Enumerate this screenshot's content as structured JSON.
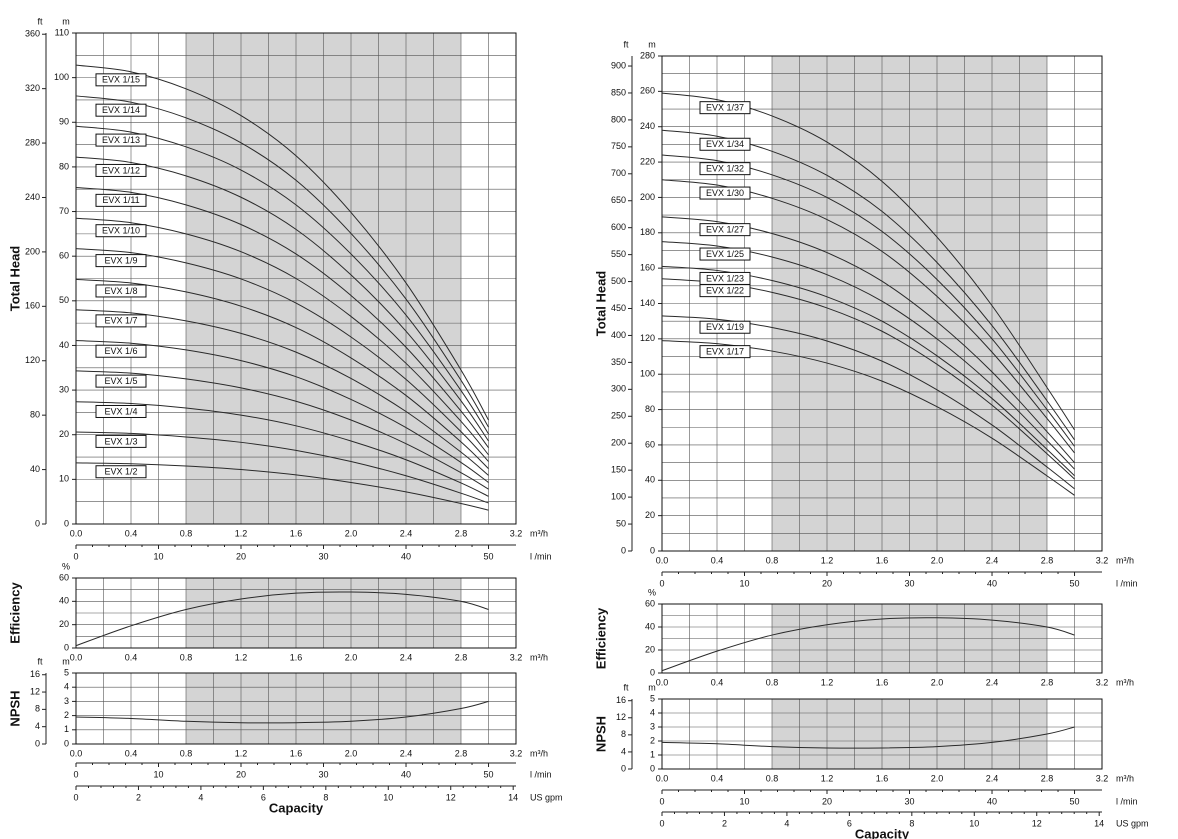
{
  "chart_data": [
    {
      "type": "line",
      "y_label": "Total Head",
      "y_unit": "m",
      "y2_unit": "ft",
      "x_unit": "m³/h",
      "x2_unit": "l /min",
      "x": [
        0,
        0.4,
        0.8,
        1.2,
        1.6,
        2.0,
        2.4,
        2.8,
        3.0
      ],
      "xlim": [
        0,
        3.2
      ],
      "xticks": [
        {
          "value": 0,
          "label": "0.0"
        },
        0.4,
        0.8,
        1.2,
        1.6,
        {
          "value": 2,
          "label": "2.0"
        },
        2.4,
        2.8,
        3.2
      ],
      "ylim": [
        0,
        110
      ],
      "yticks": [
        0,
        10,
        20,
        30,
        40,
        50,
        60,
        70,
        80,
        90,
        100,
        110
      ],
      "y2lim": [
        0,
        360.9
      ],
      "y2ticks": [
        0,
        40,
        80,
        120,
        160,
        200,
        240,
        280,
        320,
        360
      ],
      "x2lim": [
        0,
        53.33
      ],
      "x2ticks": [
        0,
        10,
        20,
        30,
        40,
        50
      ],
      "shade": [
        0.8,
        2.8
      ],
      "grid": true,
      "series": [
        {
          "name": "EVX 1/2",
          "color": "#2a2a2a",
          "values": [
            13.7,
            13.5,
            13,
            12.2,
            11,
            9.3,
            7.2,
            4.6,
            3.1
          ]
        },
        {
          "name": "EVX 1/3",
          "color": "#2a2a2a",
          "values": [
            20.6,
            20.3,
            19.5,
            18.3,
            16.5,
            14.0,
            10.8,
            6.9,
            4.7
          ]
        },
        {
          "name": "EVX 1/4",
          "color": "#2a2a2a",
          "values": [
            27.4,
            27.0,
            26.0,
            24.4,
            22.0,
            18.6,
            14.4,
            9.2,
            6.2
          ]
        },
        {
          "name": "EVX 1/5",
          "color": "#2a2a2a",
          "values": [
            34.3,
            33.8,
            32.5,
            30.5,
            27.5,
            23.3,
            18.0,
            11.5,
            7.8
          ]
        },
        {
          "name": "EVX 1/6",
          "color": "#2a2a2a",
          "values": [
            41.1,
            40.5,
            39.0,
            36.6,
            33.0,
            27.9,
            21.6,
            13.8,
            9.3
          ]
        },
        {
          "name": "EVX 1/7",
          "color": "#2a2a2a",
          "values": [
            48.0,
            47.3,
            45.5,
            42.7,
            38.5,
            32.6,
            25.2,
            16.1,
            10.9
          ]
        },
        {
          "name": "EVX 1/8",
          "color": "#2a2a2a",
          "values": [
            54.8,
            54.0,
            52.0,
            48.8,
            44.0,
            37.2,
            28.8,
            18.4,
            12.4
          ]
        },
        {
          "name": "EVX 1/9",
          "color": "#2a2a2a",
          "values": [
            61.7,
            60.8,
            58.5,
            54.9,
            49.5,
            41.9,
            32.4,
            20.7,
            14.0
          ]
        },
        {
          "name": "EVX 1/10",
          "color": "#2a2a2a",
          "values": [
            68.5,
            67.5,
            65.0,
            61.0,
            55.0,
            46.5,
            36.0,
            23.0,
            15.5
          ]
        },
        {
          "name": "EVX 1/11",
          "color": "#2a2a2a",
          "values": [
            75.4,
            74.3,
            71.5,
            67.1,
            60.5,
            51.2,
            39.6,
            25.3,
            17.1
          ]
        },
        {
          "name": "EVX 1/12",
          "color": "#2a2a2a",
          "values": [
            82.2,
            81.0,
            78.0,
            73.2,
            66.0,
            55.8,
            43.2,
            27.6,
            18.6
          ]
        },
        {
          "name": "EVX 1/13",
          "color": "#2a2a2a",
          "values": [
            89.1,
            87.8,
            84.5,
            79.3,
            71.5,
            60.5,
            46.8,
            29.9,
            20.2
          ]
        },
        {
          "name": "EVX 1/14",
          "color": "#2a2a2a",
          "values": [
            95.9,
            94.5,
            91.0,
            85.4,
            77.0,
            65.1,
            50.4,
            32.2,
            21.7
          ]
        },
        {
          "name": "EVX 1/15",
          "color": "#2a2a2a",
          "values": [
            102.8,
            101.3,
            97.5,
            91.5,
            82.5,
            69.8,
            54.0,
            34.5,
            23.3
          ]
        }
      ]
    },
    {
      "type": "line",
      "y_label": "Efficiency",
      "y_unit": "%",
      "x_unit": "m³/h",
      "x": [
        0,
        0.4,
        0.8,
        1.2,
        1.6,
        2.0,
        2.4,
        2.8,
        3.0
      ],
      "xlim": [
        0,
        3.2
      ],
      "xticks": [
        {
          "value": 0,
          "label": "0.0"
        },
        0.4,
        0.8,
        1.2,
        1.6,
        {
          "value": 2,
          "label": "2.0"
        },
        2.4,
        2.8,
        3.2
      ],
      "ylim": [
        0,
        60
      ],
      "yticks": [
        0,
        20,
        40,
        60
      ],
      "shade": [
        0.8,
        2.8
      ],
      "grid": true,
      "series": [
        {
          "color": "#2a2a2a",
          "values": [
            2,
            19,
            33,
            42,
            47,
            48,
            46,
            40,
            33
          ]
        }
      ]
    },
    {
      "type": "line",
      "y_label": "NPSH",
      "y_unit": "m",
      "y2_unit": "ft",
      "x_unit": "m³/h",
      "x2_unit": "l /min",
      "x3_unit": "US gpm",
      "x_label": "Capacity",
      "x": [
        0,
        0.4,
        0.8,
        1.2,
        1.6,
        2.0,
        2.4,
        2.8,
        3.0
      ],
      "xlim": [
        0,
        3.2
      ],
      "xticks": [
        {
          "value": 0,
          "label": "0.0"
        },
        0.4,
        0.8,
        1.2,
        1.6,
        {
          "value": 2,
          "label": "2.0"
        },
        2.4,
        2.8,
        3.2
      ],
      "ylim": [
        0,
        5
      ],
      "yticks": [
        0,
        1,
        2,
        3,
        4,
        5
      ],
      "y2lim": [
        0,
        16.4
      ],
      "y2ticks": [
        0,
        4,
        8,
        12,
        16
      ],
      "x2lim": [
        0,
        53.33
      ],
      "x2ticks": [
        0,
        10,
        20,
        30,
        40,
        50
      ],
      "x3lim": [
        0,
        14.09
      ],
      "x3ticks": [
        0,
        2,
        4,
        6,
        8,
        10,
        12,
        14
      ],
      "shade": [
        0.8,
        2.8
      ],
      "grid": true,
      "series": [
        {
          "color": "#2a2a2a",
          "values": [
            1.9,
            1.8,
            1.6,
            1.5,
            1.5,
            1.6,
            1.9,
            2.5,
            3.0
          ]
        }
      ]
    },
    {
      "type": "line",
      "y_label": "Total Head",
      "y_unit": "m",
      "y2_unit": "ft",
      "x_unit": "m³/h",
      "x2_unit": "l /min",
      "x": [
        0,
        0.4,
        0.8,
        1.2,
        1.6,
        2.0,
        2.4,
        2.8,
        3.0
      ],
      "xlim": [
        0,
        3.2
      ],
      "xticks": [
        {
          "value": 0,
          "label": "0.0"
        },
        0.4,
        0.8,
        1.2,
        1.6,
        {
          "value": 2,
          "label": "2.0"
        },
        2.4,
        2.8,
        3.2
      ],
      "ylim": [
        0,
        280
      ],
      "yticks": [
        0,
        20,
        40,
        60,
        80,
        100,
        120,
        140,
        160,
        180,
        200,
        220,
        240,
        260,
        280
      ],
      "y2lim": [
        0,
        918.6
      ],
      "y2ticks": [
        0,
        50,
        100,
        150,
        200,
        250,
        300,
        350,
        400,
        450,
        500,
        550,
        600,
        650,
        700,
        750,
        800,
        850,
        900
      ],
      "x2lim": [
        0,
        53.33
      ],
      "x2ticks": [
        0,
        10,
        20,
        30,
        40,
        50
      ],
      "shade": [
        0.8,
        2.8
      ],
      "grid": true,
      "series": [
        {
          "name": "EVX 1/17",
          "color": "#2a2a2a",
          "values": [
            119.0,
            117.3,
            113.1,
            106.3,
            96.1,
            81.6,
            63.8,
            42.5,
            31.5
          ]
        },
        {
          "name": "EVX 1/19",
          "color": "#2a2a2a",
          "values": [
            133.0,
            131.1,
            126.4,
            118.8,
            107.4,
            91.2,
            71.3,
            47.5,
            35.2
          ]
        },
        {
          "name": "EVX 1/22",
          "color": "#2a2a2a",
          "values": [
            154.0,
            151.8,
            146.3,
            137.5,
            124.3,
            105.6,
            82.5,
            55.0,
            40.7
          ]
        },
        {
          "name": "EVX 1/23",
          "color": "#2a2a2a",
          "values": [
            161.0,
            158.7,
            153.0,
            143.8,
            130.0,
            110.4,
            86.3,
            57.5,
            42.6
          ]
        },
        {
          "name": "EVX 1/25",
          "color": "#2a2a2a",
          "values": [
            175.0,
            172.5,
            166.3,
            156.3,
            141.3,
            120.0,
            93.8,
            62.5,
            46.3
          ]
        },
        {
          "name": "EVX 1/27",
          "color": "#2a2a2a",
          "values": [
            189.0,
            186.3,
            179.6,
            168.8,
            152.6,
            129.6,
            101.3,
            67.5,
            50.0
          ]
        },
        {
          "name": "EVX 1/30",
          "color": "#2a2a2a",
          "values": [
            210.0,
            207.0,
            199.5,
            187.5,
            169.5,
            144.0,
            112.5,
            75.0,
            55.5
          ]
        },
        {
          "name": "EVX 1/32",
          "color": "#2a2a2a",
          "values": [
            224.0,
            220.8,
            212.8,
            200.0,
            180.8,
            153.6,
            120.0,
            80.0,
            59.2
          ]
        },
        {
          "name": "EVX 1/34",
          "color": "#2a2a2a",
          "values": [
            238.0,
            234.6,
            226.1,
            212.5,
            192.1,
            163.2,
            127.5,
            85.0,
            62.9
          ]
        },
        {
          "name": "EVX 1/37",
          "color": "#2a2a2a",
          "values": [
            259.0,
            255.3,
            246.1,
            231.3,
            209.1,
            177.6,
            138.8,
            92.5,
            68.5
          ]
        }
      ]
    },
    {
      "type": "line",
      "y_label": "Efficiency",
      "y_unit": "%",
      "x_unit": "m³/h",
      "x": [
        0,
        0.4,
        0.8,
        1.2,
        1.6,
        2.0,
        2.4,
        2.8,
        3.0
      ],
      "xlim": [
        0,
        3.2
      ],
      "xticks": [
        {
          "value": 0,
          "label": "0.0"
        },
        0.4,
        0.8,
        1.2,
        1.6,
        {
          "value": 2,
          "label": "2.0"
        },
        2.4,
        2.8,
        3.2
      ],
      "ylim": [
        0,
        60
      ],
      "yticks": [
        0,
        20,
        40,
        60
      ],
      "shade": [
        0.8,
        2.8
      ],
      "grid": true,
      "series": [
        {
          "color": "#2a2a2a",
          "values": [
            2,
            19,
            33,
            42,
            47,
            48,
            46,
            40,
            33
          ]
        }
      ]
    },
    {
      "type": "line",
      "y_label": "NPSH",
      "y_unit": "m",
      "y2_unit": "ft",
      "x_unit": "m³/h",
      "x2_unit": "l /min",
      "x3_unit": "US gpm",
      "x_label": "Capacity",
      "x": [
        0,
        0.4,
        0.8,
        1.2,
        1.6,
        2.0,
        2.4,
        2.8,
        3.0
      ],
      "xlim": [
        0,
        3.2
      ],
      "xticks": [
        {
          "value": 0,
          "label": "0.0"
        },
        0.4,
        0.8,
        1.2,
        1.6,
        {
          "value": 2,
          "label": "2.0"
        },
        2.4,
        2.8,
        3.2
      ],
      "ylim": [
        0,
        5
      ],
      "yticks": [
        0,
        1,
        2,
        3,
        4,
        5
      ],
      "y2lim": [
        0,
        16.4
      ],
      "y2ticks": [
        0,
        4,
        8,
        12,
        16
      ],
      "x2lim": [
        0,
        53.33
      ],
      "x2ticks": [
        0,
        10,
        20,
        30,
        40,
        50
      ],
      "x3lim": [
        0,
        14.09
      ],
      "x3ticks": [
        0,
        2,
        4,
        6,
        8,
        10,
        12,
        14
      ],
      "shade": [
        0.8,
        2.8
      ],
      "grid": true,
      "series": [
        {
          "color": "#2a2a2a",
          "values": [
            1.9,
            1.8,
            1.6,
            1.5,
            1.5,
            1.6,
            1.9,
            2.5,
            3.0
          ]
        }
      ]
    }
  ]
}
